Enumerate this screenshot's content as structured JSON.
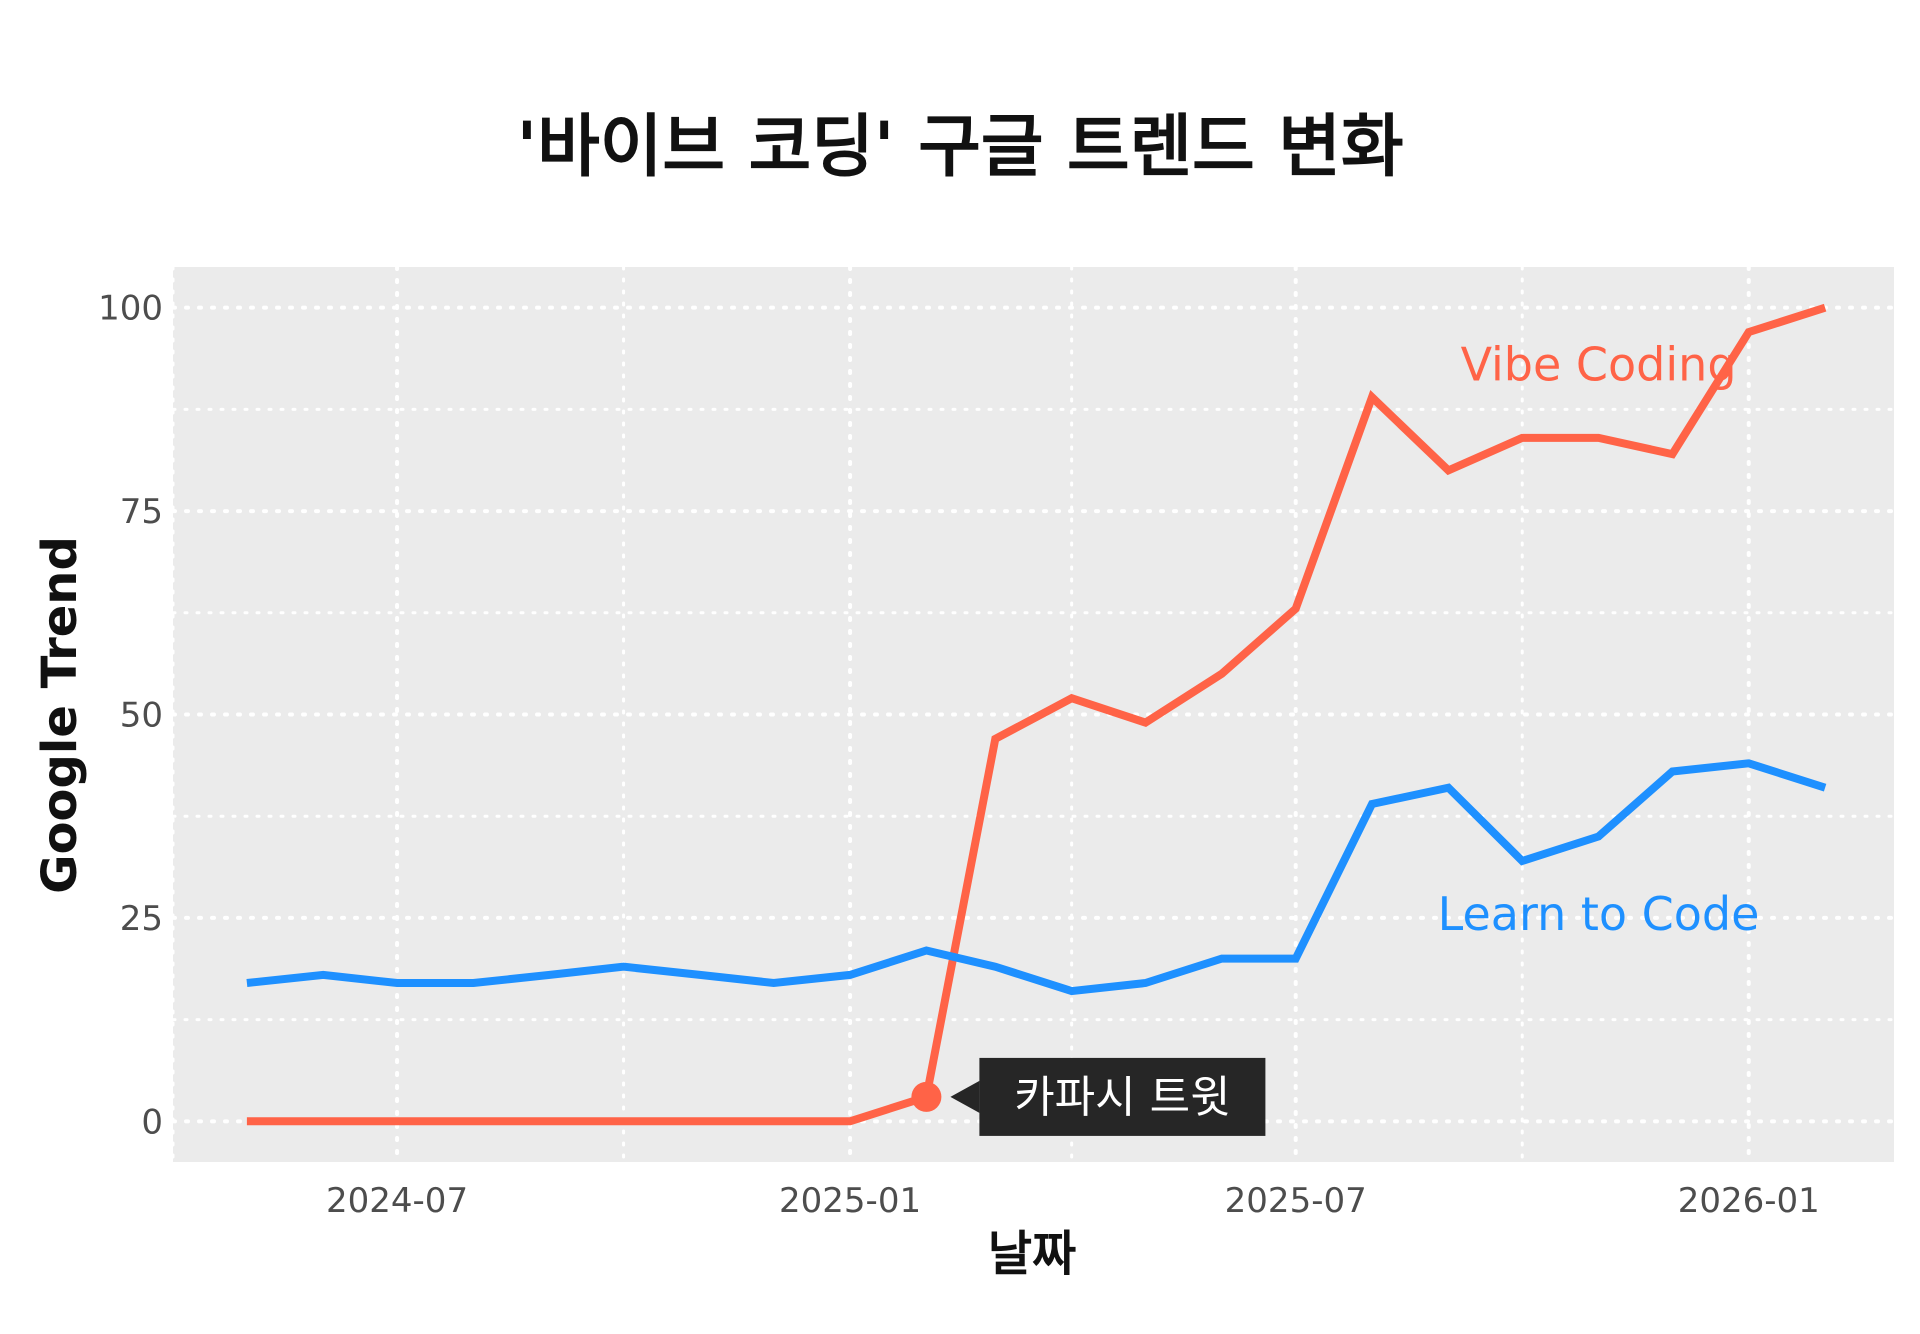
{
  "chart_data": {
    "type": "line",
    "title": "'바이브 코딩' 구글 트렌드 변화",
    "xlabel": "날짜",
    "ylabel": "Google Trend",
    "x_range": [
      "2024-04-01",
      "2026-03-01"
    ],
    "ylim": [
      -5,
      105
    ],
    "x_ticks": [
      {
        "date": "2024-07-01",
        "label": "2024-07"
      },
      {
        "date": "2025-01-01",
        "label": "2025-01"
      },
      {
        "date": "2025-07-01",
        "label": "2025-07"
      },
      {
        "date": "2026-01-01",
        "label": "2026-01"
      }
    ],
    "y_ticks": [
      0,
      25,
      50,
      75,
      100
    ],
    "grid": true,
    "grid_style": "dotted",
    "legend": "direct labels on series",
    "background_color": "#ebebeb",
    "grid_color": "#ffffff",
    "x": [
      "2024-05-01",
      "2024-06-01",
      "2024-07-01",
      "2024-08-01",
      "2024-09-01",
      "2024-10-01",
      "2024-11-01",
      "2024-12-01",
      "2025-01-01",
      "2025-02-01",
      "2025-03-01",
      "2025-04-01",
      "2025-05-01",
      "2025-06-01",
      "2025-07-01",
      "2025-08-01",
      "2025-09-01",
      "2025-10-01",
      "2025-11-01",
      "2025-12-01",
      "2026-01-01",
      "2026-02-01"
    ],
    "series": [
      {
        "name": "Vibe Coding",
        "color": "#ff6347",
        "label_position": {
          "date": "2025-11-01",
          "value": 93
        },
        "values": [
          0,
          0,
          0,
          0,
          0,
          0,
          0,
          0,
          0,
          3,
          47,
          52,
          49,
          55,
          63,
          89,
          80,
          84,
          84,
          82,
          97,
          100
        ]
      },
      {
        "name": "Learn to Code",
        "color": "#1e90ff",
        "label_position": {
          "date": "2025-11-01",
          "value": 25.5
        },
        "values": [
          17,
          18,
          17,
          17,
          18,
          19,
          18,
          17,
          18,
          21,
          19,
          16,
          17,
          20,
          20,
          39,
          41,
          32,
          35,
          43,
          44,
          41
        ]
      }
    ],
    "annotations": [
      {
        "text": "카파시 트윗",
        "date": "2025-02-01",
        "value": 3,
        "series": "Vibe Coding",
        "marker_color": "#ff6347",
        "box_color": "#262626"
      }
    ]
  }
}
